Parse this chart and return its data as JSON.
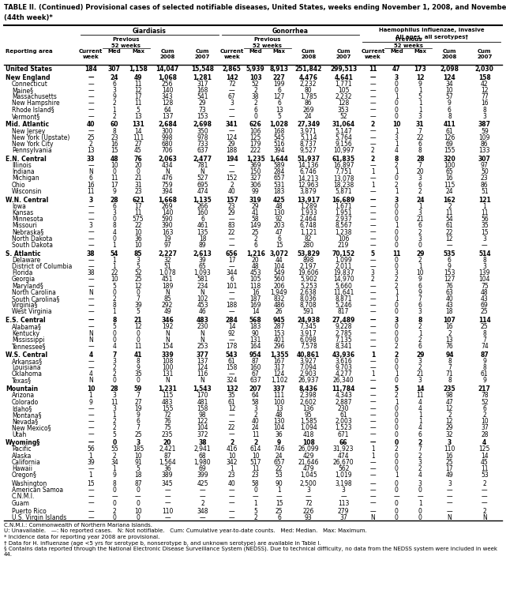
{
  "title1": "TABLE II. (Continued) Provisional cases of selected notifiable diseases, United States, weeks ending November 1, 2008, and November 3, 2007",
  "title2": "(44th week)*",
  "rows": [
    [
      "United States",
      "184",
      "307",
      "1,158",
      "14,047",
      "15,548",
      "2,865",
      "5,939",
      "8,913",
      "251,842",
      "299,513",
      "11",
      "47",
      "173",
      "2,098",
      "2,030"
    ],
    [
      "New England",
      "—",
      "24",
      "49",
      "1,068",
      "1,281",
      "142",
      "103",
      "227",
      "4,476",
      "4,641",
      "—",
      "3",
      "12",
      "124",
      "158"
    ],
    [
      "Connecticut",
      "—",
      "6",
      "11",
      "256",
      "317",
      "72",
      "52",
      "199",
      "2,232",
      "1,771",
      "—",
      "0",
      "9",
      "34",
      "42"
    ],
    [
      "Maine§",
      "—",
      "3",
      "12",
      "140",
      "168",
      "—",
      "2",
      "6",
      "80",
      "105",
      "—",
      "0",
      "1",
      "10",
      "12"
    ],
    [
      "Massachusetts",
      "—",
      "9",
      "17",
      "343",
      "541",
      "67",
      "38",
      "127",
      "1,785",
      "2,232",
      "—",
      "1",
      "5",
      "57",
      "77"
    ],
    [
      "New Hampshire",
      "—",
      "2",
      "11",
      "128",
      "29",
      "3",
      "2",
      "6",
      "86",
      "128",
      "—",
      "0",
      "1",
      "9",
      "16"
    ],
    [
      "Rhode Island§",
      "—",
      "1",
      "5",
      "64",
      "73",
      "—",
      "6",
      "13",
      "269",
      "353",
      "—",
      "0",
      "1",
      "6",
      "8"
    ],
    [
      "Vermont§",
      "—",
      "2",
      "13",
      "137",
      "153",
      "—",
      "0",
      "5",
      "24",
      "52",
      "—",
      "0",
      "3",
      "8",
      "3"
    ],
    [
      "Mid. Atlantic",
      "40",
      "60",
      "131",
      "2,684",
      "2,698",
      "341",
      "626",
      "1,028",
      "27,349",
      "31,064",
      "2",
      "10",
      "31",
      "411",
      "387"
    ],
    [
      "New Jersey",
      "—",
      "8",
      "14",
      "300",
      "350",
      "—",
      "106",
      "168",
      "3,971",
      "5,147",
      "—",
      "1",
      "7",
      "61",
      "59"
    ],
    [
      "New York (Upstate)",
      "25",
      "23",
      "111",
      "998",
      "978",
      "124",
      "125",
      "545",
      "5,114",
      "5,764",
      "—",
      "3",
      "22",
      "126",
      "109"
    ],
    [
      "New York City",
      "2",
      "16",
      "27",
      "680",
      "733",
      "29",
      "179",
      "516",
      "8,737",
      "9,156",
      "—",
      "1",
      "6",
      "69",
      "86"
    ],
    [
      "Pennsylvania",
      "13",
      "15",
      "45",
      "706",
      "637",
      "188",
      "222",
      "394",
      "9,527",
      "10,997",
      "2",
      "4",
      "8",
      "155",
      "133"
    ],
    [
      "E.N. Central",
      "33",
      "48",
      "76",
      "2,063",
      "2,477",
      "194",
      "1,235",
      "1,644",
      "51,937",
      "61,835",
      "2",
      "8",
      "28",
      "320",
      "307"
    ],
    [
      "Illinois",
      "—",
      "10",
      "20",
      "434",
      "781",
      "—",
      "369",
      "589",
      "14,136",
      "16,897",
      "—",
      "2",
      "7",
      "100",
      "97"
    ],
    [
      "Indiana",
      "N",
      "0",
      "0",
      "N",
      "N",
      "—",
      "150",
      "284",
      "6,746",
      "7,751",
      "1",
      "1",
      "20",
      "65",
      "50"
    ],
    [
      "Michigan",
      "6",
      "11",
      "21",
      "476",
      "527",
      "152",
      "327",
      "657",
      "14,213",
      "13,078",
      "—",
      "0",
      "3",
      "16",
      "23"
    ],
    [
      "Ohio",
      "16",
      "17",
      "31",
      "759",
      "695",
      "2",
      "306",
      "531",
      "12,963",
      "18,238",
      "1",
      "2",
      "6",
      "115",
      "86"
    ],
    [
      "Wisconsin",
      "11",
      "9",
      "23",
      "394",
      "474",
      "40",
      "99",
      "183",
      "3,879",
      "5,871",
      "—",
      "1",
      "2",
      "24",
      "51"
    ],
    [
      "W.N. Central",
      "3",
      "28",
      "621",
      "1,668",
      "1,135",
      "157",
      "319",
      "425",
      "13,917",
      "16,689",
      "—",
      "3",
      "24",
      "162",
      "121"
    ],
    [
      "Iowa",
      "—",
      "6",
      "17",
      "269",
      "266",
      "23",
      "29",
      "48",
      "1,289",
      "1,671",
      "—",
      "0",
      "1",
      "2",
      "1"
    ],
    [
      "Kansas",
      "—",
      "3",
      "11",
      "140",
      "160",
      "29",
      "41",
      "130",
      "1,933",
      "1,951",
      "—",
      "0",
      "3",
      "11",
      "11"
    ],
    [
      "Minnesota",
      "—",
      "0",
      "575",
      "590",
      "6",
      "—",
      "58",
      "92",
      "2,464",
      "2,937",
      "—",
      "0",
      "21",
      "54",
      "56"
    ],
    [
      "Missouri",
      "3",
      "8",
      "22",
      "390",
      "461",
      "83",
      "149",
      "203",
      "6,748",
      "8,567",
      "—",
      "1",
      "6",
      "61",
      "35"
    ],
    [
      "Nebraska§",
      "—",
      "4",
      "10",
      "163",
      "135",
      "22",
      "25",
      "47",
      "1,121",
      "1,238",
      "—",
      "0",
      "2",
      "22",
      "15"
    ],
    [
      "North Dakota",
      "—",
      "0",
      "36",
      "19",
      "18",
      "—",
      "2",
      "6",
      "82",
      "106",
      "—",
      "0",
      "3",
      "12",
      "3"
    ],
    [
      "South Dakota",
      "—",
      "1",
      "10",
      "97",
      "89",
      "—",
      "6",
      "15",
      "280",
      "219",
      "—",
      "0",
      "0",
      "—",
      "—"
    ],
    [
      "S. Atlantic",
      "38",
      "54",
      "85",
      "2,227",
      "2,613",
      "656",
      "1,216",
      "3,072",
      "53,829",
      "70,152",
      "5",
      "11",
      "29",
      "535",
      "514"
    ],
    [
      "Delaware",
      "—",
      "1",
      "3",
      "32",
      "39",
      "17",
      "20",
      "44",
      "898",
      "1,099",
      "—",
      "0",
      "2",
      "6",
      "8"
    ],
    [
      "District of Columbia",
      "—",
      "1",
      "5",
      "51",
      "65",
      "—",
      "48",
      "104",
      "2,197",
      "2,011",
      "—",
      "0",
      "1",
      "9",
      "3"
    ],
    [
      "Florida",
      "38",
      "22",
      "52",
      "1,078",
      "1,093",
      "344",
      "453",
      "549",
      "19,606",
      "19,837",
      "3",
      "3",
      "10",
      "153",
      "139"
    ],
    [
      "Georgia",
      "—",
      "10",
      "25",
      "451",
      "581",
      "6",
      "105",
      "560",
      "5,902",
      "14,970",
      "2",
      "2",
      "9",
      "127",
      "104"
    ],
    [
      "Maryland§",
      "—",
      "5",
      "12",
      "189",
      "234",
      "101",
      "118",
      "206",
      "5,253",
      "5,660",
      "—",
      "2",
      "6",
      "76",
      "75"
    ],
    [
      "North Carolina",
      "N",
      "0",
      "0",
      "N",
      "N",
      "—",
      "16",
      "1,949",
      "2,638",
      "11,641",
      "—",
      "1",
      "9",
      "63",
      "48"
    ],
    [
      "South Carolina§",
      "—",
      "2",
      "7",
      "85",
      "102",
      "—",
      "187",
      "832",
      "8,036",
      "8,871",
      "—",
      "1",
      "7",
      "40",
      "43"
    ],
    [
      "Virginia§",
      "—",
      "8",
      "39",
      "292",
      "453",
      "188",
      "169",
      "486",
      "8,708",
      "5,246",
      "—",
      "0",
      "6",
      "43",
      "69"
    ],
    [
      "West Virginia",
      "—",
      "1",
      "5",
      "49",
      "46",
      "—",
      "14",
      "26",
      "591",
      "817",
      "—",
      "0",
      "3",
      "18",
      "25"
    ],
    [
      "E.S. Central",
      "—",
      "8",
      "21",
      "346",
      "483",
      "284",
      "568",
      "945",
      "24,938",
      "27,489",
      "—",
      "3",
      "8",
      "107",
      "114"
    ],
    [
      "Alabama§",
      "—",
      "5",
      "12",
      "192",
      "230",
      "14",
      "183",
      "287",
      "7,345",
      "9,228",
      "—",
      "0",
      "2",
      "16",
      "25"
    ],
    [
      "Kentucky",
      "N",
      "0",
      "0",
      "N",
      "N",
      "92",
      "90",
      "153",
      "3,917",
      "2,785",
      "—",
      "0",
      "1",
      "2",
      "8"
    ],
    [
      "Mississippi",
      "N",
      "0",
      "0",
      "N",
      "N",
      "—",
      "131",
      "401",
      "6,098",
      "7,135",
      "—",
      "0",
      "2",
      "13",
      "7"
    ],
    [
      "Tennessee§",
      "—",
      "4",
      "11",
      "154",
      "253",
      "178",
      "164",
      "296",
      "7,578",
      "8,341",
      "—",
      "2",
      "6",
      "76",
      "74"
    ],
    [
      "W.S. Central",
      "4",
      "7",
      "41",
      "339",
      "377",
      "543",
      "954",
      "1,355",
      "40,861",
      "43,936",
      "1",
      "2",
      "29",
      "94",
      "87"
    ],
    [
      "Arkansas§",
      "—",
      "3",
      "8",
      "108",
      "137",
      "61",
      "87",
      "167",
      "3,927",
      "3,616",
      "—",
      "0",
      "3",
      "8",
      "9"
    ],
    [
      "Louisiana",
      "—",
      "2",
      "9",
      "100",
      "124",
      "158",
      "160",
      "317",
      "7,094",
      "9,703",
      "—",
      "0",
      "2",
      "7",
      "8"
    ],
    [
      "Oklahoma",
      "4",
      "2",
      "35",
      "131",
      "116",
      "—",
      "67",
      "124",
      "2,903",
      "4,277",
      "1",
      "1",
      "21",
      "71",
      "61"
    ],
    [
      "Texas§",
      "N",
      "0",
      "0",
      "N",
      "N",
      "324",
      "637",
      "1,102",
      "26,937",
      "26,340",
      "—",
      "0",
      "3",
      "8",
      "9"
    ],
    [
      "Mountain",
      "10",
      "28",
      "59",
      "1,231",
      "1,543",
      "132",
      "207",
      "337",
      "8,436",
      "11,784",
      "—",
      "5",
      "14",
      "235",
      "217"
    ],
    [
      "Arizona",
      "1",
      "3",
      "7",
      "115",
      "170",
      "35",
      "64",
      "111",
      "2,398",
      "4,343",
      "—",
      "2",
      "11",
      "98",
      "78"
    ],
    [
      "Colorado",
      "9",
      "11",
      "27",
      "483",
      "481",
      "61",
      "58",
      "100",
      "2,602",
      "2,887",
      "—",
      "1",
      "4",
      "47",
      "52"
    ],
    [
      "Idaho§",
      "—",
      "3",
      "19",
      "155",
      "158",
      "12",
      "3",
      "13",
      "136",
      "230",
      "—",
      "0",
      "4",
      "12",
      "6"
    ],
    [
      "Montana§",
      "—",
      "1",
      "9",
      "72",
      "98",
      "—",
      "2",
      "48",
      "95",
      "61",
      "—",
      "0",
      "1",
      "2",
      "2"
    ],
    [
      "Nevada§",
      "—",
      "2",
      "6",
      "76",
      "122",
      "—",
      "40",
      "130",
      "1,585",
      "2,003",
      "—",
      "0",
      "1",
      "12",
      "10"
    ],
    [
      "New Mexico§",
      "—",
      "2",
      "7",
      "75",
      "104",
      "22",
      "24",
      "104",
      "1,094",
      "1,523",
      "—",
      "0",
      "4",
      "29",
      "37"
    ],
    [
      "Utah",
      "—",
      "5",
      "25",
      "235",
      "372",
      "—",
      "11",
      "36",
      "418",
      "671",
      "—",
      "0",
      "6",
      "32",
      "28"
    ],
    [
      "Wyoming§",
      "—",
      "0",
      "3",
      "20",
      "38",
      "2",
      "2",
      "9",
      "108",
      "66",
      "—",
      "0",
      "2",
      "3",
      "4"
    ],
    [
      "Pacific",
      "56",
      "55",
      "185",
      "2,421",
      "2,941",
      "416",
      "614",
      "746",
      "26,099",
      "31,923",
      "1",
      "2",
      "7",
      "110",
      "125"
    ],
    [
      "Alaska",
      "1",
      "2",
      "10",
      "87",
      "68",
      "10",
      "10",
      "24",
      "429",
      "474",
      "1",
      "0",
      "2",
      "16",
      "14"
    ],
    [
      "California",
      "39",
      "34",
      "91",
      "1,564",
      "1,980",
      "342",
      "517",
      "657",
      "21,646",
      "26,670",
      "—",
      "0",
      "3",
      "25",
      "45"
    ],
    [
      "Hawaii",
      "—",
      "1",
      "5",
      "36",
      "69",
      "1",
      "11",
      "22",
      "479",
      "562",
      "—",
      "0",
      "2",
      "17",
      "11"
    ],
    [
      "Oregon§",
      "1",
      "9",
      "18",
      "389",
      "399",
      "23",
      "23",
      "53",
      "1,045",
      "1,019",
      "—",
      "1",
      "4",
      "49",
      "53"
    ],
    [
      "Washington",
      "15",
      "8",
      "87",
      "345",
      "425",
      "40",
      "58",
      "90",
      "2,500",
      "3,198",
      "—",
      "0",
      "3",
      "3",
      "2"
    ],
    [
      "American Samoa",
      "—",
      "0",
      "0",
      "—",
      "—",
      "—",
      "0",
      "1",
      "3",
      "3",
      "—",
      "0",
      "0",
      "—",
      "—"
    ],
    [
      "C.N.M.I.",
      "—",
      "—",
      "—",
      "—",
      "—",
      "—",
      "—",
      "—",
      "—",
      "—",
      "—",
      "—",
      "—",
      "—",
      "—"
    ],
    [
      "Guam",
      "—",
      "0",
      "0",
      "—",
      "2",
      "—",
      "1",
      "15",
      "72",
      "113",
      "—",
      "0",
      "1",
      "—",
      "—"
    ],
    [
      "Puerto Rico",
      "—",
      "2",
      "10",
      "110",
      "348",
      "—",
      "5",
      "25",
      "226",
      "279",
      "—",
      "0",
      "0",
      "—",
      "2"
    ],
    [
      "U.S. Virgin Islands",
      "—",
      "0",
      "0",
      "—",
      "—",
      "—",
      "2",
      "6",
      "93",
      "37",
      "N",
      "0",
      "0",
      "N",
      "N"
    ]
  ],
  "bold_rows": [
    0,
    1,
    8,
    13,
    19,
    27,
    37,
    42,
    47,
    55
  ],
  "section_gap_before": [
    1,
    8,
    13,
    19,
    27,
    37,
    42,
    47,
    55,
    61,
    65
  ],
  "footnotes": [
    "C.N.M.I.: Commonwealth of Northern Mariana Islands.",
    "U: Unavailable.   —: No reported cases.   N: Not notifiable.   Cum: Cumulative year-to-date counts.   Med: Median.   Max: Maximum.",
    "* Incidence data for reporting year 2008 are provisional.",
    "† Data for H. influenzae (age <5 yrs for serotype b, nonserotype b, and unknown serotype) are available in Table I.",
    "§ Contains data reported through the National Electronic Disease Surveillance System (NEDSS). Due to technical difficulty, no data from the NEDSS system were included in week 44."
  ]
}
